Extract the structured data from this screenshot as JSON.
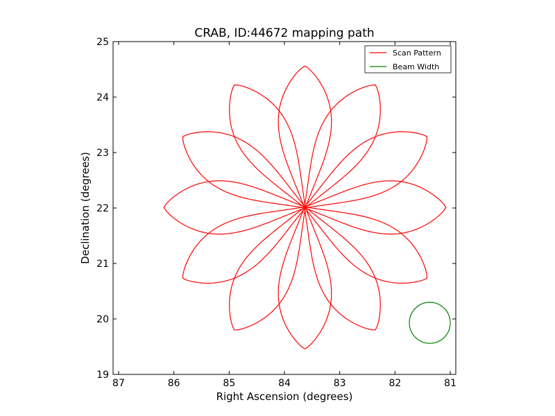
{
  "chart_data": {
    "type": "line",
    "title": "CRAB, ID:44672 mapping path",
    "xlabel": "Right Ascension (degrees)",
    "ylabel": "Declination (degrees)",
    "xlim": [
      87.1,
      80.9
    ],
    "ylim": [
      19,
      25
    ],
    "x_reversed": true,
    "xticks": [
      87,
      86,
      85,
      84,
      83,
      82,
      81
    ],
    "yticks": [
      19,
      20,
      21,
      22,
      23,
      24,
      25
    ],
    "legend_position": "top-right",
    "series": [
      {
        "name": "Scan Pattern",
        "color": "#ff0000",
        "pattern": "rose",
        "center": [
          83.63,
          22.01
        ],
        "petals": 12,
        "radius": 2.55,
        "petal_angles_deg": [
          0,
          30,
          60,
          90,
          120,
          150,
          180,
          210,
          240,
          270,
          300,
          330
        ]
      },
      {
        "name": "Beam Width",
        "color": "#008000",
        "pattern": "circle",
        "center": [
          81.37,
          19.93
        ],
        "radius": 0.37
      }
    ]
  }
}
